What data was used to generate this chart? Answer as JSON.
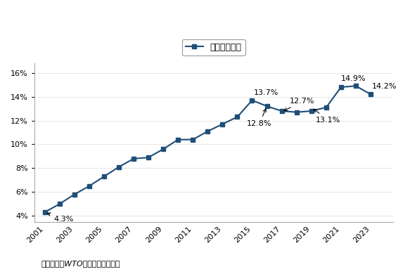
{
  "years": [
    2001,
    2002,
    2003,
    2004,
    2005,
    2006,
    2007,
    2008,
    2009,
    2010,
    2011,
    2012,
    2013,
    2014,
    2015,
    2016,
    2017,
    2018,
    2019,
    2020,
    2021,
    2022,
    2023
  ],
  "values": [
    4.3,
    5.0,
    5.8,
    6.5,
    7.3,
    8.1,
    8.8,
    8.9,
    9.6,
    10.4,
    10.4,
    11.1,
    11.7,
    12.3,
    13.7,
    13.2,
    12.8,
    12.7,
    12.8,
    13.1,
    14.8,
    14.9,
    14.2
  ],
  "line_color": "#1F4E79",
  "marker_color": "#1F4E79",
  "title": "中国出口份额",
  "source_label": "资料来源：",
  "source_wto": "WTO",
  "source_rest": "、粤开证券研究院",
  "ylim": [
    3.5,
    16.8
  ],
  "yticks": [
    4,
    6,
    8,
    10,
    12,
    14,
    16
  ],
  "background_color": "#ffffff",
  "line_width": 1.5,
  "marker_size": 4
}
